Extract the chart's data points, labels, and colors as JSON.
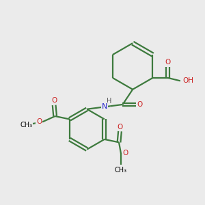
{
  "background_color": "#ebebeb",
  "bond_color": "#3d7a3d",
  "n_color": "#2222cc",
  "o_color": "#cc2222",
  "line_width": 1.6,
  "figsize": [
    3.0,
    3.0
  ],
  "dpi": 100,
  "xlim": [
    0,
    10
  ],
  "ylim": [
    0,
    10
  ]
}
